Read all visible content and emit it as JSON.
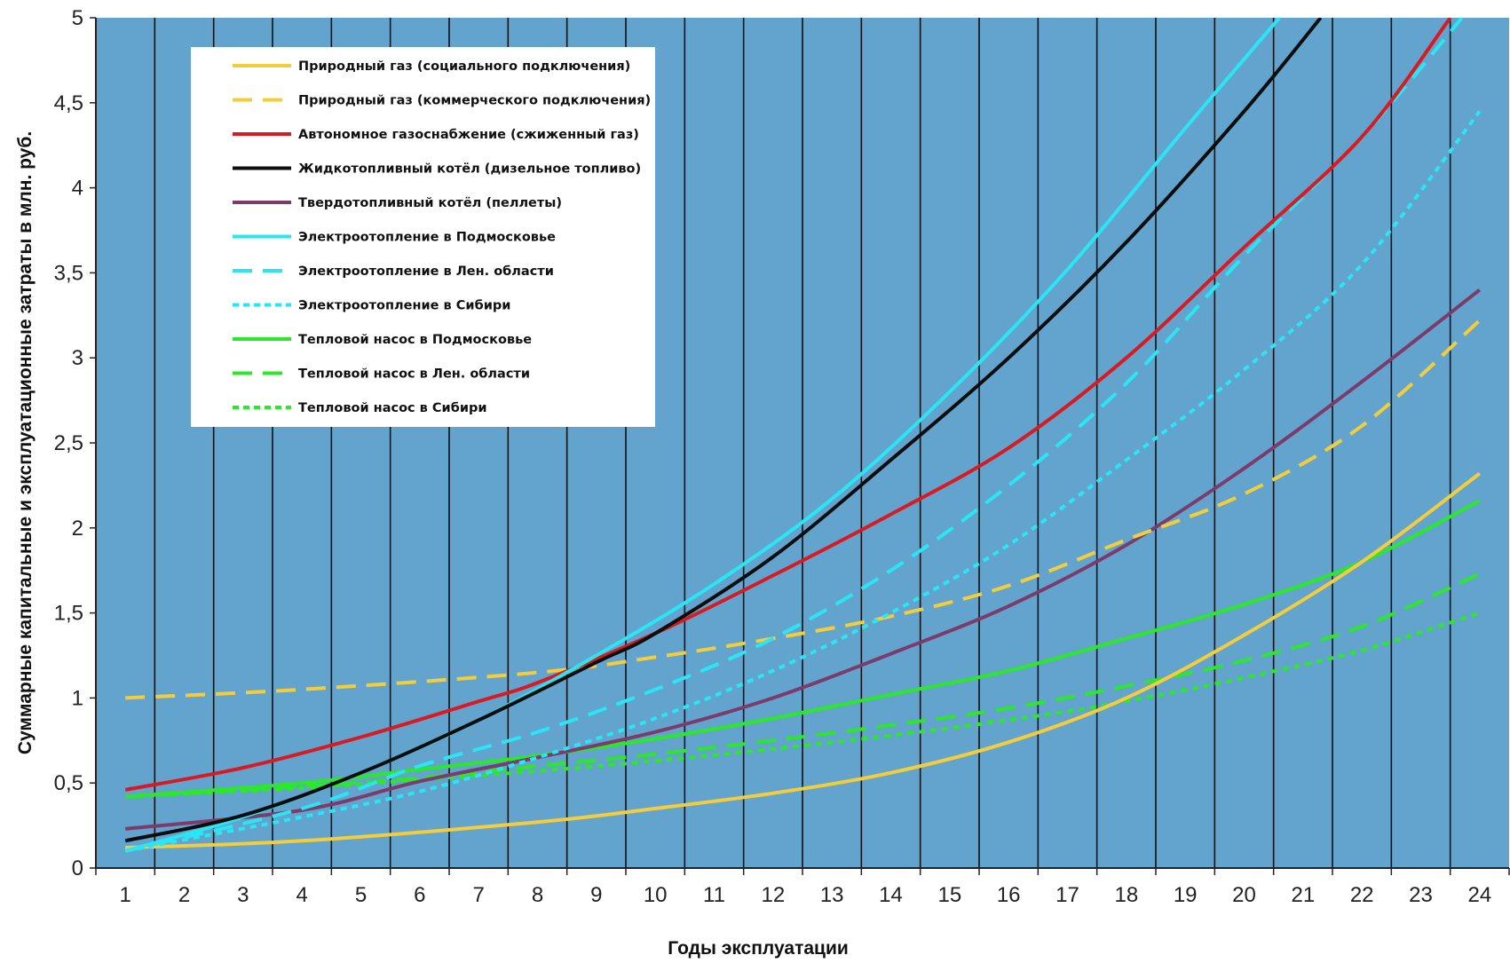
{
  "chart_data": {
    "type": "line",
    "xlabel": "Годы эксплуатации",
    "ylabel": "Суммарные капитальные и эксплуатационные затраты в  млн. руб.",
    "x": [
      1,
      2,
      3,
      4,
      5,
      6,
      7,
      8,
      9,
      10,
      11,
      12,
      13,
      14,
      15,
      16,
      17,
      18,
      19,
      20,
      21,
      22,
      23,
      24
    ],
    "x_tick_labels": [
      "1",
      "2",
      "3",
      "4",
      "5",
      "6",
      "7",
      "8",
      "9",
      "10",
      "11",
      "12",
      "13",
      "14",
      "15",
      "16",
      "17",
      "18",
      "19",
      "20",
      "21",
      "22",
      "23",
      "24"
    ],
    "xlim": [
      0.5,
      24.5
    ],
    "ylim": [
      0,
      5
    ],
    "y_ticks": [
      0,
      0.5,
      1,
      1.5,
      2,
      2.5,
      3,
      3.5,
      4,
      4.5,
      5
    ],
    "y_tick_labels": [
      "0",
      "0,5",
      "1",
      "1,5",
      "2",
      "2,5",
      "3",
      "3,5",
      "4",
      "4,5",
      "5"
    ],
    "grid": "vertical",
    "legend_position": "top-left",
    "colors": {
      "plot_background": "#62a4ce",
      "grid": "#111111",
      "legend_background": "#ffffff"
    },
    "series": [
      {
        "name": "Природный газ (социального подключения)",
        "color": "#f3cd3b",
        "dash": "solid",
        "x": [
          1,
          4,
          8,
          10,
          12,
          14,
          16,
          18,
          20,
          22,
          24
        ],
        "y": [
          0.12,
          0.16,
          0.27,
          0.35,
          0.44,
          0.56,
          0.74,
          1.0,
          1.37,
          1.8,
          2.32
        ]
      },
      {
        "name": "Природный газ (коммерческого подключения)",
        "color": "#f3cd3b",
        "dash": "long",
        "x": [
          1,
          4,
          8,
          10,
          12,
          14,
          16,
          18,
          20,
          22,
          24
        ],
        "y": [
          1.0,
          1.05,
          1.15,
          1.24,
          1.35,
          1.48,
          1.66,
          1.93,
          2.2,
          2.6,
          3.22
        ]
      },
      {
        "name": "Автономное газоснабжение (сжиженный газ)",
        "color": "#d81a22",
        "dash": "solid",
        "x": [
          1,
          3,
          5,
          7,
          8,
          10,
          12,
          14,
          16,
          18,
          20,
          22,
          23.5
        ],
        "y": [
          0.46,
          0.59,
          0.77,
          0.98,
          1.09,
          1.38,
          1.72,
          2.08,
          2.47,
          3.0,
          3.65,
          4.3,
          5.0
        ]
      },
      {
        "name": "Жидкотопливный котёл (дизельное топливо)",
        "color": "#0d0d0d",
        "dash": "solid",
        "x": [
          1,
          3,
          5,
          7,
          9,
          10,
          12,
          14,
          16,
          18,
          20,
          21.3
        ],
        "y": [
          0.16,
          0.31,
          0.56,
          0.87,
          1.21,
          1.38,
          1.83,
          2.4,
          3.0,
          3.68,
          4.45,
          5.0
        ]
      },
      {
        "name": "Твердотопливный котёл (пеллеты)",
        "color": "#7b3c6c",
        "dash": "solid",
        "x": [
          1,
          4,
          6,
          8,
          10,
          12,
          14,
          16,
          18,
          20,
          22,
          24
        ],
        "y": [
          0.23,
          0.34,
          0.51,
          0.65,
          0.8,
          1.0,
          1.26,
          1.54,
          1.9,
          2.35,
          2.86,
          3.4
        ]
      },
      {
        "name": "Электроотопление в Подмосковье",
        "color": "#2be6f2",
        "dash": "solid",
        "x": [
          1,
          3,
          5,
          7,
          9,
          11,
          13,
          15,
          17,
          19,
          20.6
        ],
        "y": [
          0.1,
          0.3,
          0.56,
          0.87,
          1.25,
          1.67,
          2.17,
          2.8,
          3.52,
          4.35,
          5.0
        ]
      },
      {
        "name": "Электроотопление в Лен. области",
        "color": "#2be6f2",
        "dash": "long",
        "x": [
          1,
          4,
          6,
          8,
          10,
          12,
          14,
          16,
          18,
          20,
          22,
          23.7
        ],
        "y": [
          0.1,
          0.35,
          0.6,
          0.8,
          1.05,
          1.35,
          1.75,
          2.25,
          2.85,
          3.6,
          4.3,
          5.0
        ]
      },
      {
        "name": "Электроотопление в Сибири",
        "color": "#2be6f2",
        "dash": "short",
        "x": [
          1,
          4,
          6,
          8,
          10,
          12,
          14,
          16,
          18,
          20,
          22,
          24
        ],
        "y": [
          0.1,
          0.3,
          0.45,
          0.65,
          0.88,
          1.16,
          1.5,
          1.9,
          2.4,
          2.93,
          3.55,
          4.45
        ]
      },
      {
        "name": "Тепловой насос в Подмосковье",
        "color": "#2ce72a",
        "dash": "solid",
        "x": [
          1,
          4,
          6,
          8,
          10,
          12,
          14,
          16,
          18,
          20,
          22,
          24
        ],
        "y": [
          0.42,
          0.5,
          0.58,
          0.66,
          0.76,
          0.88,
          1.02,
          1.16,
          1.35,
          1.55,
          1.8,
          2.16
        ]
      },
      {
        "name": "Тепловой насос в Лен. области",
        "color": "#2ce72a",
        "dash": "long",
        "x": [
          1,
          4,
          6,
          8,
          10,
          12,
          14,
          16,
          18,
          20,
          22,
          24
        ],
        "y": [
          0.42,
          0.48,
          0.53,
          0.6,
          0.67,
          0.75,
          0.84,
          0.94,
          1.07,
          1.22,
          1.42,
          1.73
        ]
      },
      {
        "name": "Тепловой насос в Сибири",
        "color": "#2ce72a",
        "dash": "short",
        "x": [
          1,
          4,
          6,
          8,
          10,
          12,
          14,
          16,
          18,
          20,
          22,
          24
        ],
        "y": [
          0.42,
          0.47,
          0.52,
          0.57,
          0.63,
          0.7,
          0.78,
          0.87,
          0.98,
          1.12,
          1.28,
          1.5
        ]
      }
    ]
  }
}
